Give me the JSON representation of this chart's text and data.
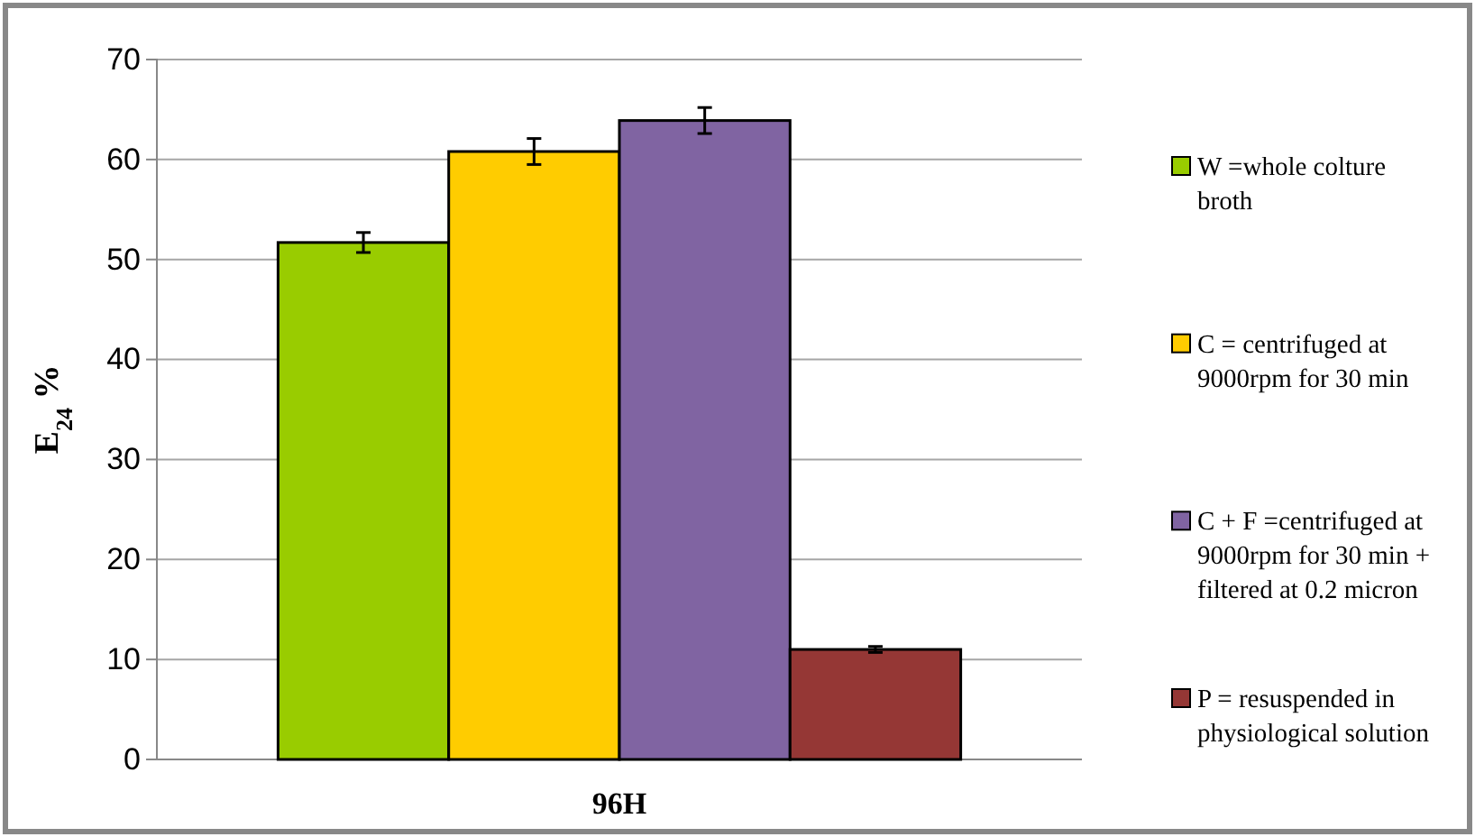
{
  "chart_data": {
    "type": "bar",
    "categories": [
      "96H"
    ],
    "ylabel": "E$_{24}$ %",
    "ylim": [
      0,
      70
    ],
    "yticks": [
      0,
      10,
      20,
      30,
      40,
      50,
      60,
      70
    ],
    "grid": "y",
    "legend": "right",
    "series": [
      {
        "name": "W =whole colture broth",
        "color": "#99cc00",
        "values": [
          51.7
        ],
        "errors": [
          1
        ]
      },
      {
        "name": "C = centrifuged at 9000rpm for 30 min",
        "color": "#ffcc00",
        "values": [
          60.8
        ],
        "errors": [
          1.3
        ]
      },
      {
        "name": "C + F =centrifuged at 9000rpm for 30 min + filtered at 0.2 micron",
        "color": "#8064a2",
        "values": [
          63.9
        ],
        "errors": [
          1.3
        ]
      },
      {
        "name": "P = resuspended in physiological solution",
        "color": "#953735",
        "values": [
          11
        ],
        "errors": [
          0.3
        ]
      }
    ]
  }
}
